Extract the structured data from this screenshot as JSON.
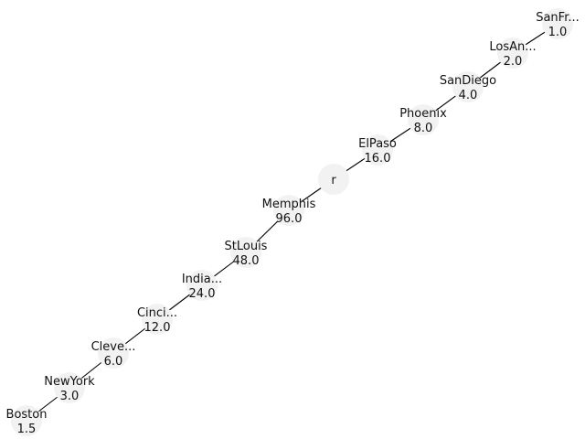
{
  "tree": {
    "root": {
      "label": "r"
    },
    "upper_branch": [
      {
        "name": "ElPaso",
        "value": "16.0"
      },
      {
        "name": "Phoenix",
        "value": "8.0"
      },
      {
        "name": "SanDiego",
        "value": "4.0"
      },
      {
        "name": "LosAn...",
        "value": "2.0"
      },
      {
        "name": "SanFr...",
        "value": "1.0"
      }
    ],
    "lower_branch": [
      {
        "name": "Memphis",
        "value": "96.0"
      },
      {
        "name": "StLouis",
        "value": "48.0"
      },
      {
        "name": "India...",
        "value": "24.0"
      },
      {
        "name": "Cinci...",
        "value": "12.0"
      },
      {
        "name": "Cleve...",
        "value": "6.0"
      },
      {
        "name": "NewYork",
        "value": "3.0"
      },
      {
        "name": "Boston",
        "value": "1.5"
      }
    ],
    "colors": {
      "node_fill": "#f2f2f2",
      "edge": "#000000",
      "text": "#111111"
    }
  }
}
